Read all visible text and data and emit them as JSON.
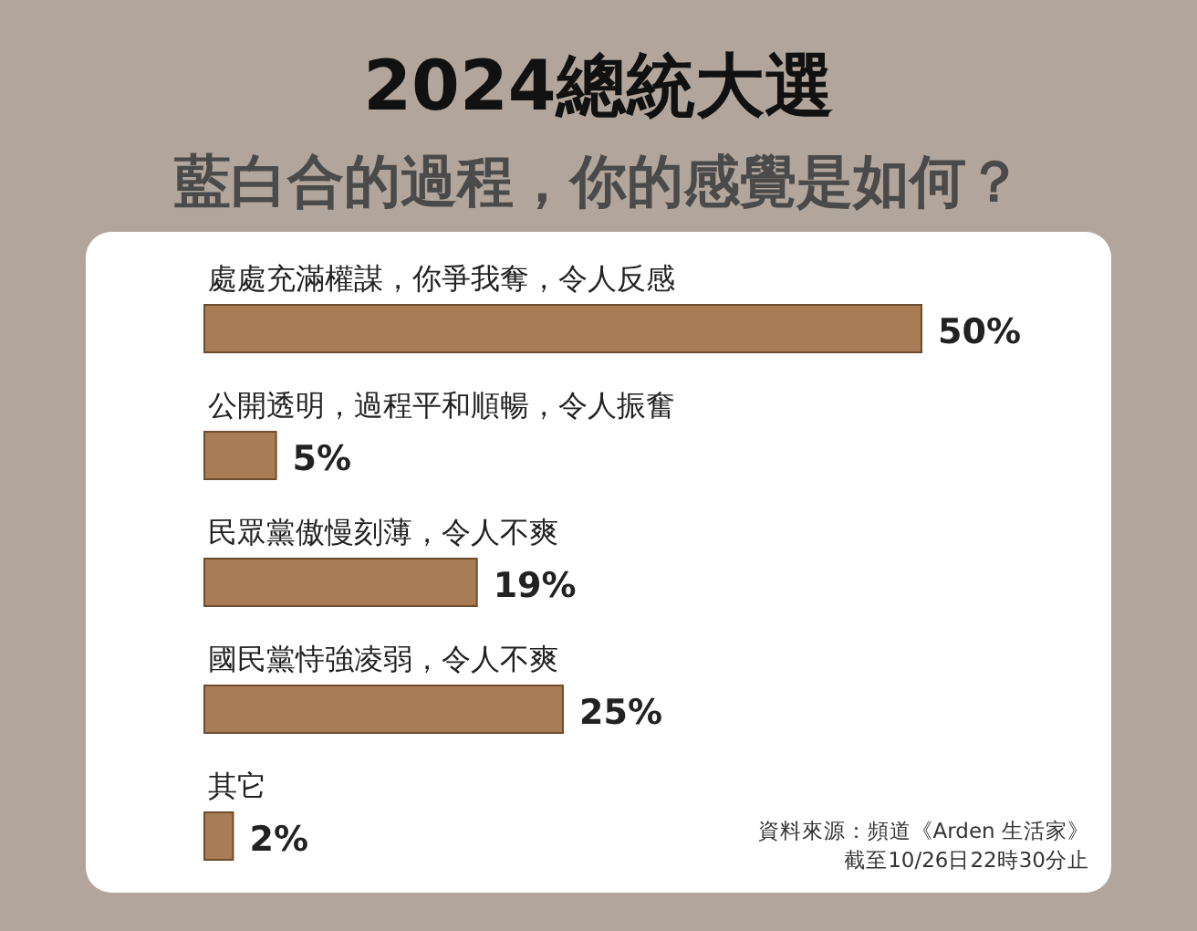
{
  "chart_data": {
    "type": "bar",
    "orientation": "horizontal",
    "title": "2024總統大選",
    "subtitle": "藍白合的過程，你的感覺是如何？",
    "categories": [
      "處處充滿權謀，你爭我奪，令人反感",
      "公開透明，過程平和順暢，令人振奮",
      "民眾黨傲慢刻薄，令人不爽",
      "國民黨恃強凌弱，令人不爽",
      "其它"
    ],
    "values": [
      50,
      5,
      19,
      25,
      2
    ],
    "value_labels": [
      "50%",
      "5%",
      "19%",
      "25%",
      "2%"
    ],
    "color": "#a87d55",
    "annotations": [
      "資料來源：頻道《Arden 生活家》",
      "截至10/26日22時30分止"
    ]
  }
}
